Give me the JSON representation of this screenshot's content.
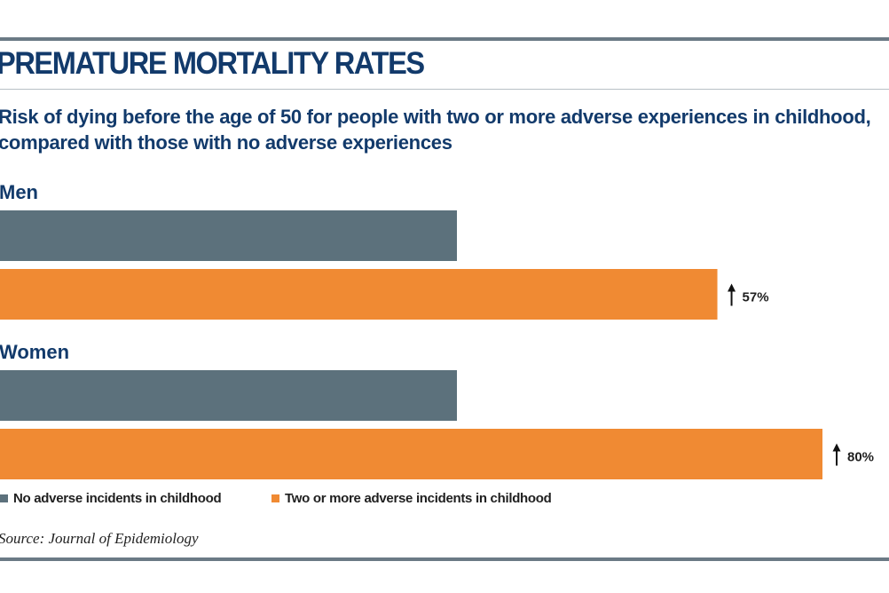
{
  "header": {
    "title": "PREMATURE MORTALITY RATES",
    "subtitle": "Risk of dying before the age of 50 for people with two or more adverse experiences in childhood, compared with those with no adverse experiences"
  },
  "colors": {
    "baseline_bar": "#5c717c",
    "adverse_bar": "#f08a33",
    "title_text": "#123a6b",
    "rule": "#6b7a85"
  },
  "chart_data": {
    "type": "bar",
    "orientation": "horizontal",
    "title": "PREMATURE MORTALITY RATES",
    "subtitle": "Risk of dying before the age of 50 for people with two or more adverse experiences in childhood, compared with those with no adverse experiences",
    "xlabel": "",
    "ylabel": "",
    "categories": [
      "Men",
      "Women"
    ],
    "series": [
      {
        "name": "No adverse incidents in childhood",
        "values": [
          100,
          100
        ]
      },
      {
        "name": "Two or more adverse incidents in childhood",
        "values": [
          157,
          180
        ]
      }
    ],
    "annotations": [
      "57%",
      "80%"
    ],
    "annotation_icon": "up-arrow-icon",
    "xlim": [
      0,
      195
    ],
    "grid": false,
    "legend_position": "bottom"
  },
  "legend": {
    "items": [
      {
        "label": "No adverse incidents in childhood",
        "color": "#5c717c"
      },
      {
        "label": "Two or more adverse incidents in childhood",
        "color": "#f08a33"
      }
    ]
  },
  "source": "Source: Journal of Epidemiology"
}
